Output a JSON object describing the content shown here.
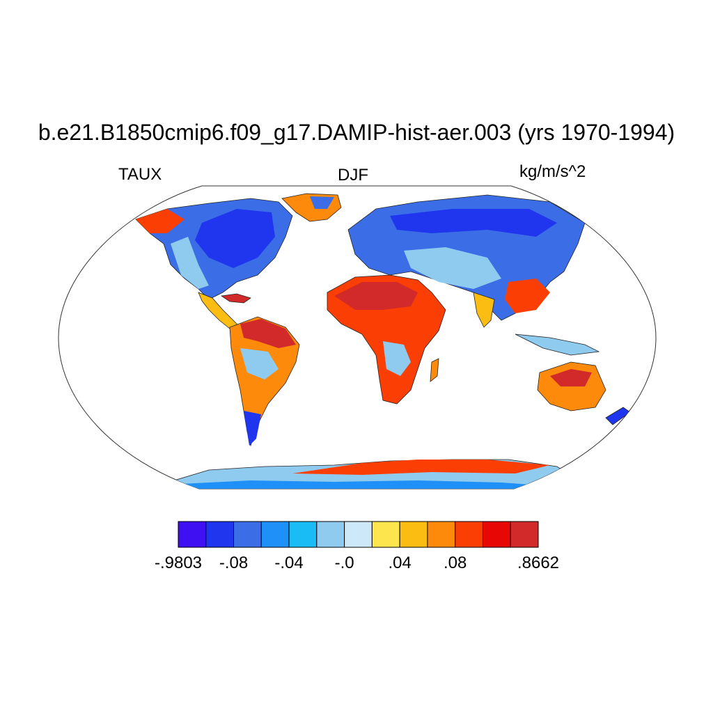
{
  "title": "b.e21.B1850cmip6.f09_g17.DAMIP-hist-aer.003 (yrs 1970-1994)",
  "left_label": "TAUX",
  "center_label": "DJF",
  "right_label": "kg/m/s^2",
  "map": {
    "projection": "Robinson",
    "field": "TAUX",
    "season": "DJF",
    "ocean_masked": true,
    "coastlines": true
  },
  "colorbar": {
    "colors": [
      "#3f10f2",
      "#1f35ee",
      "#3b6ee6",
      "#1e90f8",
      "#1abcf5",
      "#8ecbef",
      "#cce8f9",
      "#fde54e",
      "#fbbd12",
      "#fd8a0a",
      "#fb3f04",
      "#e70806",
      "#d22a2a"
    ],
    "labels": [
      {
        "text": "-.9803",
        "boundary": 0
      },
      {
        "text": "-.08",
        "boundary": 2
      },
      {
        "text": "-.04",
        "boundary": 4
      },
      {
        "text": "-.0",
        "boundary": 6
      },
      {
        "text": ".04",
        "boundary": 8
      },
      {
        "text": ".08",
        "boundary": 10
      },
      {
        "text": ".8662",
        "boundary": 13
      }
    ]
  }
}
